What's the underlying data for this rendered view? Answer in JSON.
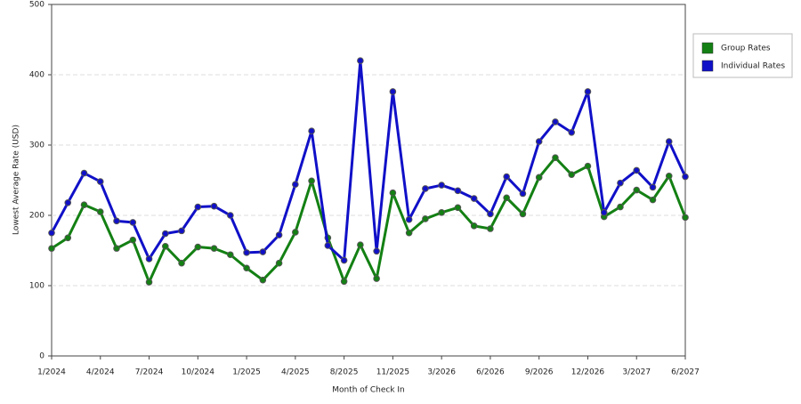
{
  "chart_data": {
    "type": "line",
    "x_label": "Month of Check In",
    "y_label": "Lowest Average Rate (USD)",
    "categories": [
      "1/2024",
      null,
      null,
      "4/2024",
      null,
      null,
      "7/2024",
      null,
      null,
      "10/2024",
      null,
      null,
      "1/2025",
      null,
      null,
      "4/2025",
      null,
      null,
      "8/2025",
      null,
      null,
      "11/2025",
      null,
      null,
      "3/2026",
      null,
      null,
      "6/2026",
      null,
      null,
      "9/2026",
      null,
      null,
      "12/2026",
      null,
      null,
      "3/2027",
      null,
      null,
      "6/2027"
    ],
    "series": [
      {
        "name": "Group Rates",
        "color": "#138013",
        "values": [
          153,
          168,
          215,
          205,
          153,
          165,
          105,
          156,
          132,
          155,
          153,
          144,
          125,
          108,
          132,
          176,
          249,
          168,
          106,
          158,
          110,
          232,
          175,
          195,
          204,
          211,
          185,
          181,
          225,
          202,
          254,
          282,
          258,
          270,
          198,
          212,
          236,
          222,
          256,
          197
        ]
      },
      {
        "name": "Individual Rates",
        "color": "#1010c8",
        "values": [
          175,
          218,
          260,
          248,
          192,
          190,
          138,
          174,
          178,
          212,
          213,
          200,
          147,
          148,
          172,
          244,
          320,
          157,
          136,
          420,
          149,
          376,
          194,
          238,
          243,
          235,
          224,
          202,
          255,
          231,
          305,
          333,
          318,
          376,
          204,
          246,
          264,
          240,
          305,
          255
        ]
      }
    ],
    "ylim": [
      0,
      500
    ],
    "yticks": [
      0,
      100,
      200,
      300,
      400,
      500
    ],
    "grid": true,
    "legend": "right"
  }
}
